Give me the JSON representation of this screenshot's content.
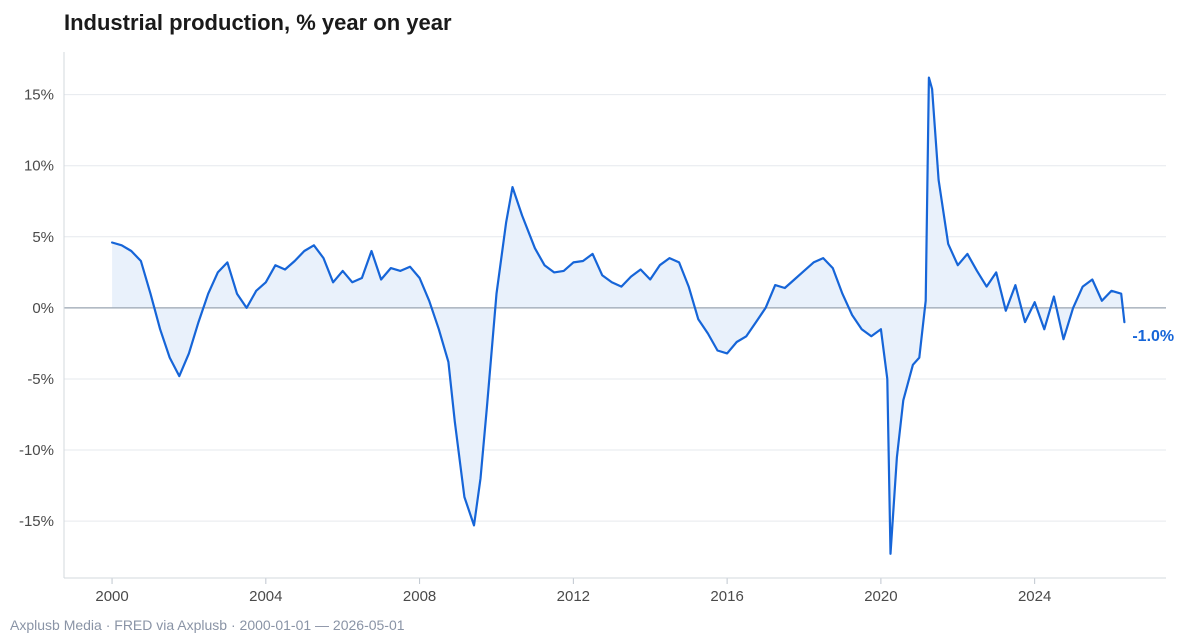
{
  "chart_data": {
    "type": "area",
    "title": "Industrial production, % year on year",
    "xlabel": "",
    "ylabel": "",
    "x_range": [
      "2000-01-01",
      "2026-05-01"
    ],
    "xlim": [
      "1998-10-01",
      "2027-06-01"
    ],
    "ylim": [
      -19,
      18
    ],
    "x_ticks": [
      "2000",
      "2004",
      "2008",
      "2012",
      "2016",
      "2020",
      "2024"
    ],
    "y_ticks": [
      -15,
      -10,
      -5,
      0,
      5,
      10,
      15
    ],
    "y_tick_labels": [
      "-15%",
      "-10%",
      "-5%",
      "0%",
      "5%",
      "10%",
      "15%"
    ],
    "grid": true,
    "legend": "none",
    "line_color": "#1665d8",
    "fill_color": "#e9f1fb",
    "zero_line_color": "#9aa5b1",
    "end_label": "-1.0%",
    "series": [
      {
        "points": [
          [
            "2000-01",
            4.6
          ],
          [
            "2000-04",
            4.4
          ],
          [
            "2000-07",
            4.0
          ],
          [
            "2000-10",
            3.3
          ],
          [
            "2001-01",
            1.0
          ],
          [
            "2001-04",
            -1.5
          ],
          [
            "2001-07",
            -3.5
          ],
          [
            "2001-10",
            -4.8
          ],
          [
            "2002-01",
            -3.2
          ],
          [
            "2002-04",
            -1.0
          ],
          [
            "2002-07",
            1.0
          ],
          [
            "2002-10",
            2.5
          ],
          [
            "2003-01",
            3.2
          ],
          [
            "2003-04",
            1.0
          ],
          [
            "2003-07",
            0.0
          ],
          [
            "2003-10",
            1.2
          ],
          [
            "2004-01",
            1.8
          ],
          [
            "2004-04",
            3.0
          ],
          [
            "2004-07",
            2.7
          ],
          [
            "2004-10",
            3.3
          ],
          [
            "2005-01",
            4.0
          ],
          [
            "2005-04",
            4.4
          ],
          [
            "2005-07",
            3.5
          ],
          [
            "2005-10",
            1.8
          ],
          [
            "2006-01",
            2.6
          ],
          [
            "2006-04",
            1.8
          ],
          [
            "2006-07",
            2.1
          ],
          [
            "2006-10",
            4.0
          ],
          [
            "2007-01",
            2.0
          ],
          [
            "2007-04",
            2.8
          ],
          [
            "2007-07",
            2.6
          ],
          [
            "2007-10",
            2.9
          ],
          [
            "2008-01",
            2.1
          ],
          [
            "2008-04",
            0.5
          ],
          [
            "2008-07",
            -1.5
          ],
          [
            "2008-10",
            -3.8
          ],
          [
            "2008-12",
            -8.0
          ],
          [
            "2009-03",
            -13.3
          ],
          [
            "2009-06",
            -15.3
          ],
          [
            "2009-08",
            -12.0
          ],
          [
            "2009-10",
            -7.0
          ],
          [
            "2010-01",
            1.0
          ],
          [
            "2010-04",
            6.0
          ],
          [
            "2010-06",
            8.5
          ],
          [
            "2010-09",
            6.5
          ],
          [
            "2011-01",
            4.2
          ],
          [
            "2011-04",
            3.0
          ],
          [
            "2011-07",
            2.5
          ],
          [
            "2011-10",
            2.6
          ],
          [
            "2012-01",
            3.2
          ],
          [
            "2012-04",
            3.3
          ],
          [
            "2012-07",
            3.8
          ],
          [
            "2012-10",
            2.3
          ],
          [
            "2013-01",
            1.8
          ],
          [
            "2013-04",
            1.5
          ],
          [
            "2013-07",
            2.2
          ],
          [
            "2013-10",
            2.7
          ],
          [
            "2014-01",
            2.0
          ],
          [
            "2014-04",
            3.0
          ],
          [
            "2014-07",
            3.5
          ],
          [
            "2014-10",
            3.2
          ],
          [
            "2015-01",
            1.5
          ],
          [
            "2015-04",
            -0.8
          ],
          [
            "2015-07",
            -1.8
          ],
          [
            "2015-10",
            -3.0
          ],
          [
            "2016-01",
            -3.2
          ],
          [
            "2016-04",
            -2.4
          ],
          [
            "2016-07",
            -2.0
          ],
          [
            "2016-10",
            -1.0
          ],
          [
            "2017-01",
            0.0
          ],
          [
            "2017-04",
            1.6
          ],
          [
            "2017-07",
            1.4
          ],
          [
            "2017-10",
            2.0
          ],
          [
            "2018-01",
            2.6
          ],
          [
            "2018-04",
            3.2
          ],
          [
            "2018-07",
            3.5
          ],
          [
            "2018-10",
            2.8
          ],
          [
            "2019-01",
            1.0
          ],
          [
            "2019-04",
            -0.5
          ],
          [
            "2019-07",
            -1.5
          ],
          [
            "2019-10",
            -2.0
          ],
          [
            "2020-01",
            -1.5
          ],
          [
            "2020-03",
            -5.0
          ],
          [
            "2020-04",
            -17.3
          ],
          [
            "2020-06",
            -10.5
          ],
          [
            "2020-08",
            -6.5
          ],
          [
            "2020-11",
            -4.0
          ],
          [
            "2021-01",
            -3.5
          ],
          [
            "2021-03",
            0.5
          ],
          [
            "2021-04",
            16.2
          ],
          [
            "2021-05",
            15.4
          ],
          [
            "2021-07",
            9.0
          ],
          [
            "2021-10",
            4.5
          ],
          [
            "2022-01",
            3.0
          ],
          [
            "2022-04",
            3.8
          ],
          [
            "2022-07",
            2.6
          ],
          [
            "2022-10",
            1.5
          ],
          [
            "2023-01",
            2.5
          ],
          [
            "2023-04",
            -0.2
          ],
          [
            "2023-07",
            1.6
          ],
          [
            "2023-10",
            -1.0
          ],
          [
            "2024-01",
            0.4
          ],
          [
            "2024-04",
            -1.5
          ],
          [
            "2024-07",
            0.8
          ],
          [
            "2024-10",
            -2.2
          ],
          [
            "2025-01",
            0.0
          ],
          [
            "2025-04",
            1.5
          ],
          [
            "2025-07",
            2.0
          ],
          [
            "2025-10",
            0.5
          ],
          [
            "2026-01",
            1.2
          ],
          [
            "2026-04",
            1.0
          ],
          [
            "2026-05",
            -1.0
          ]
        ]
      }
    ]
  },
  "footer": {
    "source": "Axplusb Media · FRED via Axplusb · 2000-01-01 — 2026-05-01"
  }
}
